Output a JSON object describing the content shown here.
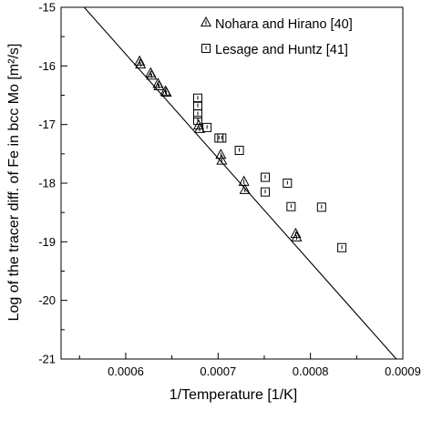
{
  "chart_data": {
    "type": "scatter",
    "xlabel": "1/Temperature [1/K]",
    "ylabel": "Log of the tracer diff. of Fe in bcc Mo [m²/s]",
    "xlim": [
      0.00053,
      0.0009
    ],
    "ylim": [
      -21,
      -15
    ],
    "x_ticks": [
      {
        "value": 0.0006,
        "label": "0.0006"
      },
      {
        "value": 0.0007,
        "label": "0.0007"
      },
      {
        "value": 0.0008,
        "label": "0.0008"
      },
      {
        "value": 0.0009,
        "label": "0.0009"
      }
    ],
    "y_ticks": [
      {
        "value": -15,
        "label": "-15"
      },
      {
        "value": -16,
        "label": "-16"
      },
      {
        "value": -17,
        "label": "-17"
      },
      {
        "value": -18,
        "label": "-18"
      },
      {
        "value": -19,
        "label": "-19"
      },
      {
        "value": -20,
        "label": "-20"
      },
      {
        "value": -21,
        "label": "-21"
      }
    ],
    "grid": false,
    "legend_position": "top-right",
    "fit_line": {
      "points": [
        [
          0.000555,
          -15.0
        ],
        [
          0.000893,
          -21.0
        ]
      ]
    },
    "series": [
      {
        "name": "Nohara and Hirano [40]",
        "marker": "triangle",
        "points": [
          [
            0.000615,
            -15.93
          ],
          [
            0.000616,
            -15.98
          ],
          [
            0.000627,
            -16.13
          ],
          [
            0.000628,
            -16.17
          ],
          [
            0.000635,
            -16.31
          ],
          [
            0.000636,
            -16.35
          ],
          [
            0.000643,
            -16.44
          ],
          [
            0.000644,
            -16.46
          ],
          [
            0.000679,
            -17.02
          ],
          [
            0.00068,
            -17.08
          ],
          [
            0.000703,
            -17.52
          ],
          [
            0.000704,
            -17.62
          ],
          [
            0.000728,
            -17.98
          ],
          [
            0.000729,
            -18.12
          ],
          [
            0.000784,
            -18.87
          ],
          [
            0.000785,
            -18.93
          ]
        ]
      },
      {
        "name": "Lesage and Huntz [41]",
        "marker": "square",
        "points": [
          [
            0.000678,
            -16.55
          ],
          [
            0.000678,
            -16.68
          ],
          [
            0.000678,
            -16.82
          ],
          [
            0.000678,
            -16.93
          ],
          [
            0.000688,
            -17.05
          ],
          [
            0.000701,
            -17.23
          ],
          [
            0.000704,
            -17.23
          ],
          [
            0.000723,
            -17.44
          ],
          [
            0.000751,
            -17.9
          ],
          [
            0.000751,
            -18.15
          ],
          [
            0.000775,
            -18.0
          ],
          [
            0.000779,
            -18.4
          ],
          [
            0.000812,
            -18.41
          ],
          [
            0.000834,
            -19.1
          ]
        ]
      }
    ]
  }
}
